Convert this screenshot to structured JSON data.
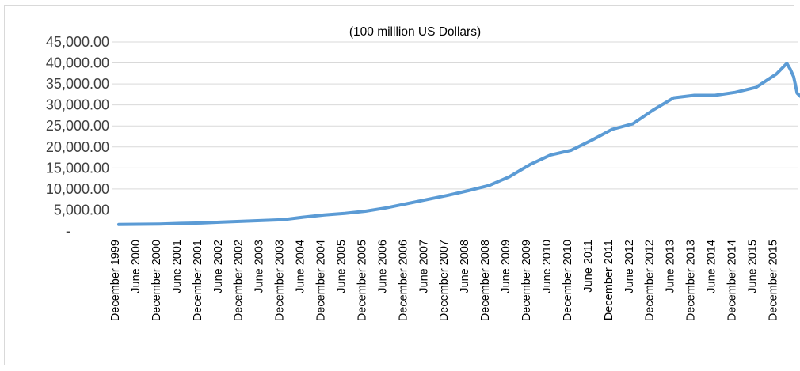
{
  "chart_data": {
    "type": "line",
    "title": "(100 milllion US Dollars)",
    "xlabel": "",
    "ylabel": "",
    "ylim": [
      0,
      45000
    ],
    "y_ticks": [
      "-",
      "5,000.00",
      "10,000.00",
      "15,000.00",
      "20,000.00",
      "25,000.00",
      "30,000.00",
      "35,000.00",
      "40,000.00",
      "45,000.00"
    ],
    "y_tick_values": [
      0,
      5000,
      10000,
      15000,
      20000,
      25000,
      30000,
      35000,
      40000,
      45000
    ],
    "x_ticks": [
      "December 1999",
      "June 2000",
      "December 2000",
      "June 2001",
      "December 2001",
      "June 2002",
      "December 2002",
      "June 2003",
      "December 2003",
      "June 2004",
      "December 2004",
      "June 2005",
      "December 2005",
      "June 2006",
      "December 2006",
      "June 2007",
      "December 2007",
      "June 2008",
      "December 2008",
      "June 2009",
      "December 2009",
      "June 2010",
      "December 2010",
      "June 2011",
      "December 2011",
      "June 2012",
      "December 2012",
      "June 2013",
      "December 2013",
      "June 2014",
      "December 2014",
      "June 2015",
      "December 2015"
    ],
    "grid": true,
    "legend": "none",
    "series_color": "#5b9bd5",
    "series": [
      {
        "values": [
          1547,
          1600,
          1656,
          1800,
          1900,
          2100,
          2300,
          2500,
          2700,
          3300,
          3800,
          4200,
          4700,
          5500,
          6500,
          7500,
          8500,
          9600,
          10800,
          12900,
          15800,
          18100,
          19200,
          21600,
          24200,
          25500,
          28800,
          31700,
          32300,
          32300,
          33000,
          34200,
          37400,
          39900,
          38500,
          36700,
          32800,
          32000
        ]
      }
    ],
    "x": [
      "December 1999",
      "June 2000",
      "December 2000",
      "June 2001",
      "December 2001",
      "June 2002",
      "December 2002",
      "June 2003",
      "December 2003",
      "June 2004",
      "December 2004",
      "June 2005",
      "December 2005",
      "June 2006",
      "December 2006",
      "June 2007",
      "December 2007",
      "June 2008",
      "December 2008",
      "June 2009",
      "December 2009",
      "June 2010",
      "December 2010",
      "June 2011",
      "December 2011",
      "June 2012",
      "December 2012",
      "June 2013",
      "December 2013",
      "June 2014",
      "December 2014",
      "June 2015",
      "December 2015",
      "March 2016",
      "April 2016",
      "May 2016",
      "June 2016",
      "July 2016"
    ]
  }
}
